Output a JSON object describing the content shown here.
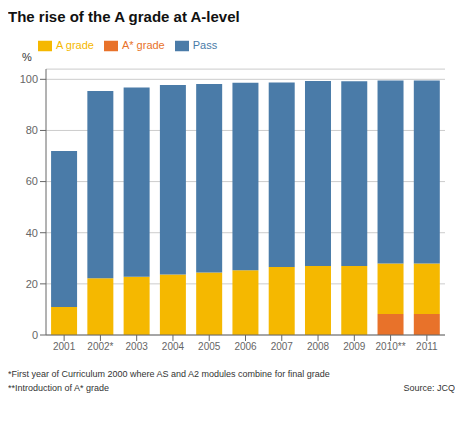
{
  "chart_data": {
    "type": "bar",
    "title": "The rise of the A grade at A-level",
    "ylabel": "%",
    "categories": [
      "2001",
      "2002*",
      "2003",
      "2004",
      "2005",
      "2006",
      "2007",
      "2008",
      "2009",
      "2010**",
      "2011"
    ],
    "series": [
      {
        "name": "A* grade",
        "color": "#e8722a",
        "values": [
          0,
          0,
          0,
          0,
          0,
          0,
          0,
          0,
          0,
          8.2,
          8.2
        ]
      },
      {
        "name": "A grade",
        "color": "#f5b800",
        "values": [
          11.0,
          22.2,
          22.8,
          23.7,
          24.4,
          25.3,
          26.6,
          27.0,
          27.0,
          19.8,
          19.8
        ]
      },
      {
        "name": "Pass",
        "color": "#4a7ba8",
        "values": [
          61.0,
          73.2,
          74.0,
          74.1,
          73.8,
          73.4,
          72.2,
          72.3,
          72.2,
          71.5,
          71.5
        ]
      }
    ],
    "stacked": true,
    "ylim": [
      0,
      104
    ],
    "yticks": [
      0,
      20,
      40,
      60,
      80,
      100
    ],
    "grid": true,
    "legend": "top",
    "annotations": [
      "*First year of Curriculum 2000 where AS and A2 modules combine for final grade",
      "**Introduction of A* grade",
      "Source: JCQ"
    ]
  }
}
